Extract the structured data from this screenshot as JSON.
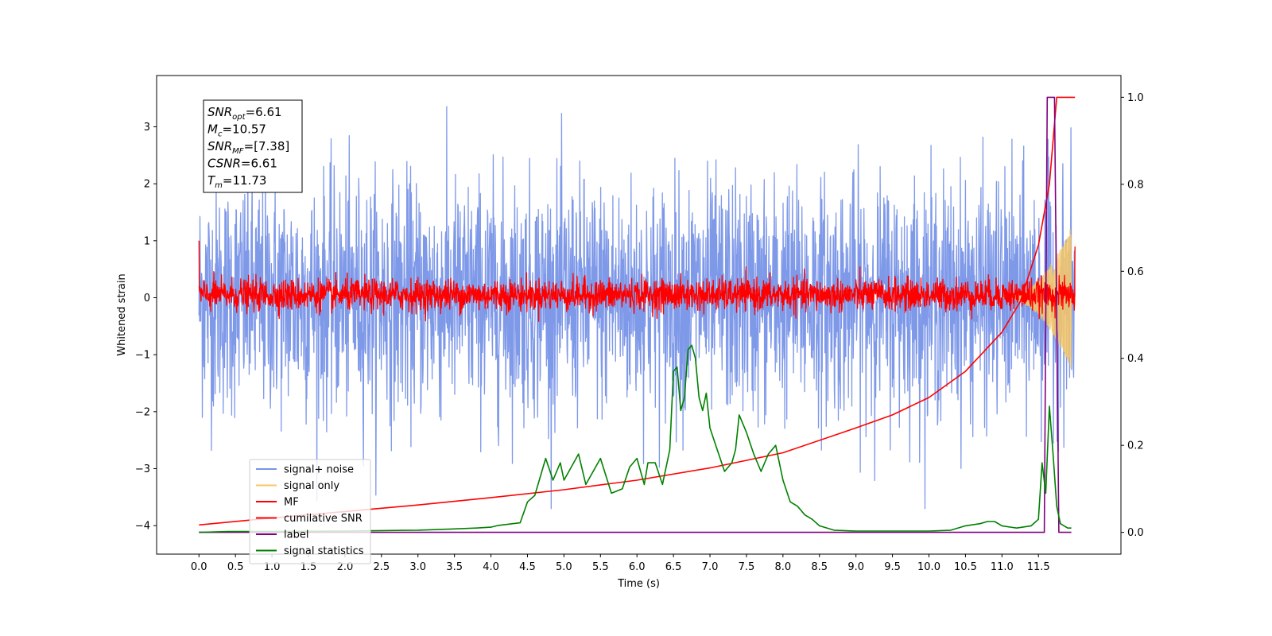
{
  "chart_data": {
    "type": "line",
    "title": "",
    "xlabel": "Time (s)",
    "ylabel": "Whitened strain",
    "y2label": "",
    "xlim": [
      -0.58,
      12.63
    ],
    "ylim": [
      -4.5,
      3.9
    ],
    "y2lim": [
      -0.05,
      1.05
    ],
    "x_ticks": [
      0.0,
      0.5,
      1.0,
      1.5,
      2.0,
      2.5,
      3.0,
      3.5,
      4.0,
      4.5,
      5.0,
      5.5,
      6.0,
      6.5,
      7.0,
      7.5,
      8.0,
      8.5,
      9.0,
      9.5,
      10.0,
      10.5,
      11.0,
      11.5
    ],
    "x_tick_labels": [
      "0.0",
      "0.5",
      "1.0",
      "1.5",
      "2.0",
      "2.5",
      "3.0",
      "3.5",
      "4.0",
      "4.5",
      "5.0",
      "5.5",
      "6.0",
      "6.5",
      "7.0",
      "7.5",
      "8.0",
      "8.5",
      "9.0",
      "9.5",
      "10.0",
      "10.5",
      "11.0",
      "11.5"
    ],
    "y_ticks": [
      -4,
      -3,
      -2,
      -1,
      0,
      1,
      2,
      3
    ],
    "y_tick_labels": [
      "−4",
      "−3",
      "−2",
      "−1",
      "0",
      "1",
      "2",
      "3"
    ],
    "y2_ticks": [
      0.0,
      0.2,
      0.4,
      0.6,
      0.8,
      1.0
    ],
    "y2_tick_labels": [
      "0.0",
      "0.2",
      "0.4",
      "0.6",
      "0.8",
      "1.0"
    ],
    "legend_placement": "lower-left",
    "legend": [
      {
        "label": "signal+ noise",
        "color": "#7893e8"
      },
      {
        "label": "signal only",
        "color": "#f6c766"
      },
      {
        "label": "MF",
        "color": "#ff0000"
      },
      {
        "label": "cumilative SNR",
        "color": "#ff0000"
      },
      {
        "label": "label",
        "color": "#800080"
      },
      {
        "label": "signal statistics",
        "color": "#008000"
      }
    ],
    "annotation": {
      "lines": [
        {
          "sym": "SNR",
          "sub": "opt",
          "text": "=6.61"
        },
        {
          "sym": "M",
          "sub": "c",
          "text": "=10.57"
        },
        {
          "sym": "SNR",
          "sub": "MF",
          "text": "=[7.38]"
        },
        {
          "sym": "CSNR",
          "sub": "",
          "text": "=6.61"
        },
        {
          "sym": "T",
          "sub": "m",
          "text": "=11.73"
        }
      ]
    },
    "series": [
      {
        "name": "signal+ noise",
        "axis": "left",
        "color": "#7893e8",
        "kind": "noise",
        "x_range": [
          0.0,
          12.0
        ],
        "typical_range": [
          -1.6,
          1.7
        ],
        "extreme_range": [
          -3.7,
          3.55
        ]
      },
      {
        "name": "signal only",
        "axis": "left",
        "color": "#f6c766",
        "kind": "chirp",
        "x_range": [
          11.0,
          11.95
        ],
        "envelope_max": 1.25
      },
      {
        "name": "MF",
        "axis": "left",
        "color": "#ff0000",
        "kind": "noise",
        "x_range": [
          0.0,
          12.0
        ],
        "typical_range": [
          -0.2,
          0.3
        ],
        "start_value": 1.0,
        "end_value": 0.9
      },
      {
        "name": "cumilative SNR",
        "axis": "right",
        "color": "#ff0000",
        "kind": "line",
        "x": [
          0.0,
          1.0,
          2.0,
          3.0,
          4.0,
          5.0,
          6.0,
          7.0,
          8.0,
          9.0,
          9.5,
          10.0,
          10.5,
          11.0,
          11.25,
          11.5,
          11.65,
          11.75,
          12.0
        ],
        "y": [
          0.017,
          0.033,
          0.048,
          0.063,
          0.08,
          0.098,
          0.12,
          0.148,
          0.183,
          0.24,
          0.27,
          0.31,
          0.37,
          0.46,
          0.53,
          0.66,
          0.8,
          1.0,
          1.0
        ]
      },
      {
        "name": "label",
        "axis": "right",
        "color": "#800080",
        "kind": "line",
        "x": [
          0.0,
          11.58,
          11.62,
          11.68,
          11.72,
          11.78,
          11.95
        ],
        "y": [
          0.0,
          0.0,
          1.0,
          1.0,
          1.0,
          0.0,
          0.0
        ]
      },
      {
        "name": "signal statistics",
        "axis": "right",
        "color": "#008000",
        "kind": "line",
        "x": [
          0.0,
          0.4,
          1.0,
          2.0,
          3.0,
          3.5,
          3.8,
          4.0,
          4.1,
          4.2,
          4.4,
          4.5,
          4.6,
          4.75,
          4.85,
          4.95,
          5.0,
          5.1,
          5.2,
          5.3,
          5.4,
          5.5,
          5.65,
          5.8,
          5.9,
          6.0,
          6.1,
          6.15,
          6.25,
          6.35,
          6.45,
          6.5,
          6.55,
          6.6,
          6.65,
          6.7,
          6.75,
          6.8,
          6.85,
          6.9,
          6.95,
          7.0,
          7.1,
          7.2,
          7.3,
          7.35,
          7.4,
          7.5,
          7.6,
          7.7,
          7.8,
          7.9,
          8.0,
          8.1,
          8.2,
          8.3,
          8.4,
          8.5,
          8.7,
          9.0,
          9.5,
          10.0,
          10.3,
          10.5,
          10.7,
          10.8,
          10.9,
          11.0,
          11.2,
          11.4,
          11.5,
          11.55,
          11.6,
          11.65,
          11.7,
          11.75,
          11.8,
          11.9,
          11.95
        ],
        "y": [
          0.0,
          0.002,
          0.002,
          0.003,
          0.005,
          0.008,
          0.01,
          0.012,
          0.016,
          0.018,
          0.022,
          0.07,
          0.085,
          0.17,
          0.12,
          0.16,
          0.12,
          0.15,
          0.18,
          0.11,
          0.14,
          0.17,
          0.09,
          0.1,
          0.15,
          0.17,
          0.11,
          0.16,
          0.16,
          0.11,
          0.19,
          0.37,
          0.38,
          0.28,
          0.31,
          0.42,
          0.43,
          0.4,
          0.31,
          0.28,
          0.32,
          0.24,
          0.19,
          0.14,
          0.16,
          0.19,
          0.27,
          0.23,
          0.18,
          0.14,
          0.18,
          0.2,
          0.12,
          0.07,
          0.06,
          0.04,
          0.03,
          0.015,
          0.005,
          0.003,
          0.003,
          0.003,
          0.005,
          0.015,
          0.02,
          0.025,
          0.025,
          0.015,
          0.01,
          0.015,
          0.03,
          0.16,
          0.09,
          0.29,
          0.18,
          0.06,
          0.02,
          0.01,
          0.01
        ]
      }
    ]
  }
}
